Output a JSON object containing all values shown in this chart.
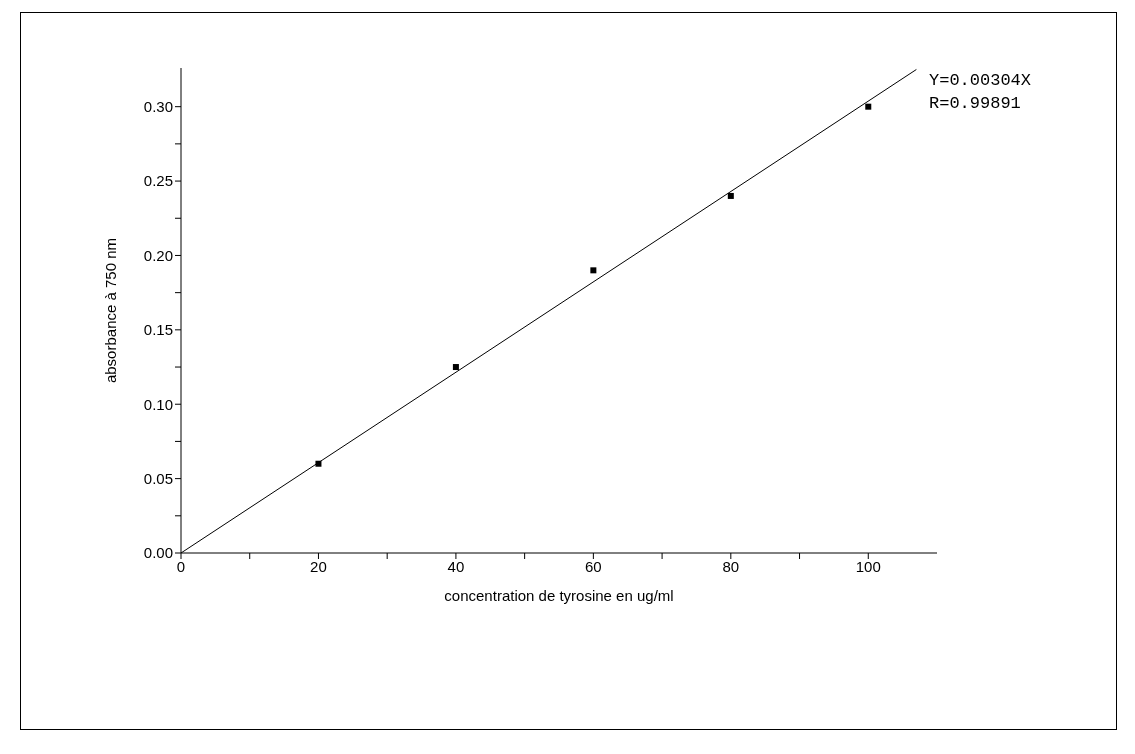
{
  "chart_data": {
    "type": "scatter",
    "xlabel": "concentration de tyrosine en ug/ml",
    "ylabel": "absorbance à 750 nm",
    "x": [
      20,
      40,
      60,
      80,
      100
    ],
    "series": [
      {
        "color": "#000000",
        "marker": "square",
        "values": [
          0.06,
          0.125,
          0.19,
          0.24,
          0.3
        ]
      },
      {
        "type": "line",
        "color": "#000000",
        "line_style": "solid",
        "marker": "none",
        "x": [
          0,
          107
        ],
        "values": [
          0,
          0.325
        ]
      }
    ],
    "xlim": [
      0,
      110
    ],
    "ylim": [
      0,
      0.326
    ],
    "xticks": [
      0,
      {
        "value": 10,
        "label": null
      },
      20,
      {
        "value": 30,
        "label": null
      },
      40,
      {
        "value": 50,
        "label": null
      },
      60,
      {
        "value": 70,
        "label": null
      },
      80,
      {
        "value": 90,
        "label": null
      },
      100
    ],
    "yticks": [
      {
        "value": 0,
        "label": "0.00"
      },
      {
        "value": 0.025,
        "label": null
      },
      {
        "value": 0.05,
        "label": "0.05"
      },
      {
        "value": 0.075,
        "label": null
      },
      {
        "value": 0.1,
        "label": "0.10"
      },
      {
        "value": 0.125,
        "label": null
      },
      {
        "value": 0.15,
        "label": "0.15"
      },
      {
        "value": 0.175,
        "label": null
      },
      {
        "value": 0.2,
        "label": "0.20"
      },
      {
        "value": 0.225,
        "label": null
      },
      {
        "value": 0.25,
        "label": "0.25"
      },
      {
        "value": 0.275,
        "label": null
      },
      {
        "value": 0.3,
        "label": "0.30"
      }
    ],
    "annotations": [
      "Y=0.00304X",
      "R=0.99891"
    ]
  }
}
